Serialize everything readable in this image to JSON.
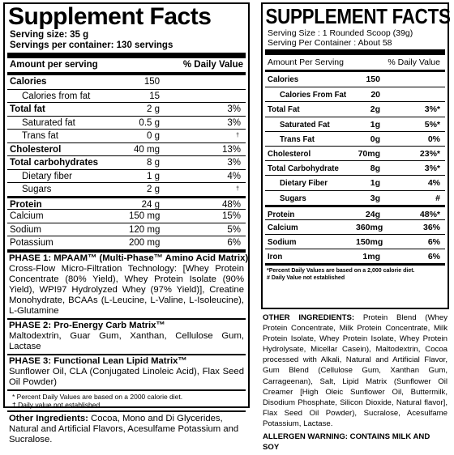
{
  "left": {
    "title": "Supplement Facts",
    "serving_size": "Serving size:  35 g",
    "servings_per_container": "Servings per container:  130 servings",
    "header": {
      "amount": "Amount per serving",
      "dv": "% Daily Value"
    },
    "rows": [
      {
        "name": "Calories",
        "amount": "150",
        "dv": "",
        "bold": true,
        "indent": false
      },
      {
        "name": "Calories from fat",
        "amount": "15",
        "dv": "",
        "bold": false,
        "indent": true
      },
      {
        "name": "Total fat",
        "amount": "2 g",
        "dv": "3%",
        "bold": true,
        "indent": false
      },
      {
        "name": "Saturated fat",
        "amount": "0.5 g",
        "dv": "3%",
        "bold": false,
        "indent": true
      },
      {
        "name": "Trans fat",
        "amount": "0 g",
        "dv": "†",
        "bold": false,
        "indent": true
      },
      {
        "name": "Cholesterol",
        "amount": "40 mg",
        "dv": "13%",
        "bold": true,
        "indent": false
      },
      {
        "name": "Total carbohydrates",
        "amount": "8 g",
        "dv": "3%",
        "bold": true,
        "indent": false
      },
      {
        "name": "Dietary fiber",
        "amount": "1 g",
        "dv": "4%",
        "bold": false,
        "indent": true
      },
      {
        "name": "Sugars",
        "amount": "2 g",
        "dv": "†",
        "bold": false,
        "indent": true
      },
      {
        "name": "Protein",
        "amount": "24 g",
        "dv": "48%",
        "bold": true,
        "indent": false
      },
      {
        "name": "Calcium",
        "amount": "150 mg",
        "dv": "15%",
        "bold": false,
        "indent": false
      },
      {
        "name": "Sodium",
        "amount": "120 mg",
        "dv": "5%",
        "bold": false,
        "indent": false
      },
      {
        "name": "Potassium",
        "amount": "200 mg",
        "dv": "6%",
        "bold": false,
        "indent": false
      }
    ],
    "phase1": {
      "heading": "PHASE 1: MPAAM™ (Multi-Phase™ Amino Acid Matrix)",
      "text": "Cross-Flow Micro-Filtration Technology: [Whey Protein Concentrate (80% Yield), Whey Protein Isolate (90% Yield), WPI97 Hydrolyzed Whey (97% Yield)], Creatine Monohydrate, BCAAs (L-Leucine, L-Valine, L-Isoleucine), L-Glutamine"
    },
    "phase2": {
      "heading": "PHASE 2: Pro-Energy Carb Matrix™",
      "text": "Maltodextrin, Guar Gum, Xanthan, Cellulose Gum, Lactase"
    },
    "phase3": {
      "heading": "PHASE 3: Functional Lean Lipid Matrix™",
      "text": "Sunflower Oil, CLA (Conjugated Linoleic Acid), Flax Seed Oil Powder)"
    },
    "notes": [
      "* Percent Daily Values are based on a 2000 calorie diet.",
      "† Daily value not established."
    ],
    "other_label": "Other Ingredients:",
    "other_text": " Cocoa, Mono and Di Glycerides, Natural and Artificial Flavors, Acesulfame Potassium and Sucralose."
  },
  "right": {
    "title": "SUPPLEMENT FACTS",
    "serving_size": "Serving Size : 1 Rounded Scoop (39g)",
    "servings_per_container": "Serving Per Container : About 58",
    "header": {
      "amount": "Amount Per Serving",
      "dv": "% Daily Value"
    },
    "rows": [
      {
        "name": "Calories",
        "amount": "150",
        "dv": "",
        "indent": false
      },
      {
        "name": "Calories From Fat",
        "amount": "20",
        "dv": "",
        "indent": true
      },
      {
        "name": "Total Fat",
        "amount": "2g",
        "dv": "3%*",
        "indent": false
      },
      {
        "name": "Saturated Fat",
        "amount": "1g",
        "dv": "5%*",
        "indent": true
      },
      {
        "name": "Trans Fat",
        "amount": "0g",
        "dv": "0%",
        "indent": true
      },
      {
        "name": "Cholesterol",
        "amount": "70mg",
        "dv": "23%*",
        "indent": false
      },
      {
        "name": "Total Carbohydrate",
        "amount": "8g",
        "dv": "3%*",
        "indent": false
      },
      {
        "name": "Dietary Fiber",
        "amount": "1g",
        "dv": "4%",
        "indent": true
      },
      {
        "name": "Sugars",
        "amount": "3g",
        "dv": "#",
        "indent": true
      },
      {
        "name": "Protein",
        "amount": "24g",
        "dv": "48%*",
        "indent": false
      },
      {
        "name": "Calcium",
        "amount": "360mg",
        "dv": "36%",
        "indent": false
      },
      {
        "name": "Sodium",
        "amount": "150mg",
        "dv": "6%",
        "indent": false
      },
      {
        "name": "Iron",
        "amount": "1mg",
        "dv": "6%",
        "indent": false
      }
    ],
    "notes": [
      "*Percent Daily Values are based on a 2,000 calorie diet.",
      "# Daily Value not established"
    ],
    "other_label": "OTHER INGREDIENTS:",
    "other_text": " Protein Blend (Whey Protein Concentrate, Milk Protein Concentrate, Milk Protein Isolate, Whey Protein Isolate, Whey Protein Hydrolysate, Micellar Casein), Maltodextrin, Cocoa processed with Alkali, Natural and Artificial Flavor, Gum Blend (Cellulose Gum, Xanthan Gum, Carrageenan), Salt, Lipid Matrix (Sunflower Oil Creamer [High Oleic Sunflower Oil, Buttermilk, Disodium Phosphate, Silicon Dioxide, Natural flavor], Flax Seed Oil Powder), Sucralose, Acesulfame Potassium, Lactase.",
    "allergen": "ALLERGEN WARNING: CONTAINS MILK AND SOY"
  }
}
